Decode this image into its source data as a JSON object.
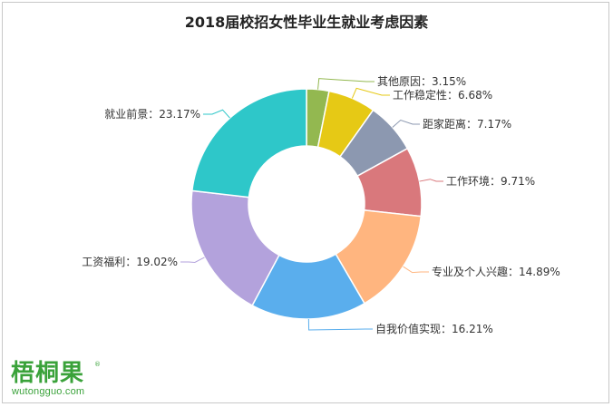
{
  "logo": {
    "name": "梧桐果",
    "mark": "®",
    "url": "wutongguo.com"
  },
  "chart_data": {
    "type": "pie",
    "variant": "donut",
    "title": "2018届校招女性毕业生就业考虑因素",
    "slices": [
      {
        "label": "其他原因",
        "value": 3.15,
        "display": "其他原因：3.15%",
        "color": "#93b850"
      },
      {
        "label": "工作稳定性",
        "value": 6.68,
        "display": "工作稳定性：6.68%",
        "color": "#e6c915"
      },
      {
        "label": "距家距离",
        "value": 7.17,
        "display": "距家距离：7.17%",
        "color": "#8c98b0"
      },
      {
        "label": "工作环境",
        "value": 9.71,
        "display": "工作环境：9.71%",
        "color": "#d9787c"
      },
      {
        "label": "专业及个人兴趣",
        "value": 14.89,
        "display": "专业及个人兴趣：14.89%",
        "color": "#ffb57f"
      },
      {
        "label": "自我价值实现",
        "value": 16.21,
        "display": "自我价值实现：16.21%",
        "color": "#5aaeed"
      },
      {
        "label": "工资福利",
        "value": 19.02,
        "display": "工资福利：19.02%",
        "color": "#b3a2dc"
      },
      {
        "label": "就业前景",
        "value": 23.17,
        "display": "就业前景：23.17%",
        "color": "#2ec7c9"
      }
    ]
  }
}
